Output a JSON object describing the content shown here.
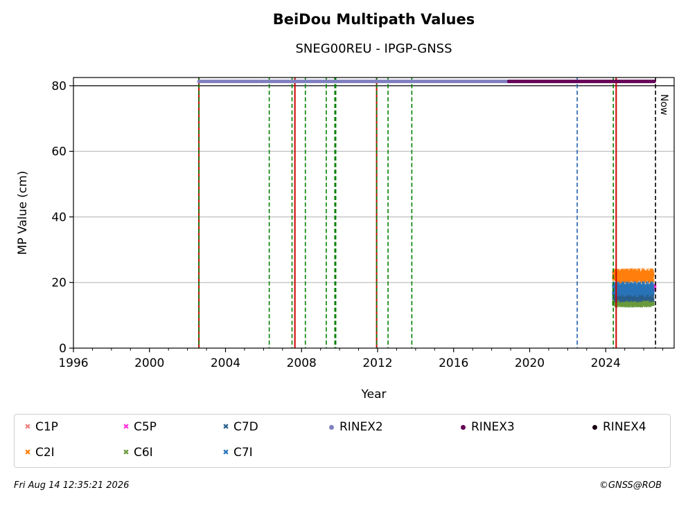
{
  "chart_data": {
    "type": "scatter",
    "title": "BeiDou Multipath Values",
    "subtitle": "SNEG00REU - IPGP-GNSS",
    "xlabel": "Year",
    "ylabel": "MP Value (cm)",
    "xlim": [
      1996,
      2027.6
    ],
    "ylim": [
      0,
      82.5
    ],
    "xticks": [
      1996,
      2000,
      2004,
      2008,
      2012,
      2016,
      2020,
      2024
    ],
    "yticks": [
      0,
      20,
      40,
      60,
      80
    ],
    "grid": "horizontal",
    "legend_position": "bottom",
    "now_label": "Now",
    "now_year": 2026.62,
    "reference_line_y": 80,
    "vertical_lines": [
      {
        "year": 2002.6,
        "color": "#cc0000",
        "style": "solid"
      },
      {
        "year": 2002.6,
        "color": "#008000",
        "style": "dashed"
      },
      {
        "year": 2006.3,
        "color": "#008000",
        "style": "dashed"
      },
      {
        "year": 2007.5,
        "color": "#008000",
        "style": "dashed"
      },
      {
        "year": 2007.65,
        "color": "#cc0000",
        "style": "solid"
      },
      {
        "year": 2008.2,
        "color": "#008000",
        "style": "dashed"
      },
      {
        "year": 2009.3,
        "color": "#008000",
        "style": "dashed"
      },
      {
        "year": 2009.75,
        "color": "#008000",
        "style": "dashed"
      },
      {
        "year": 2009.8,
        "color": "#008000",
        "style": "dashed"
      },
      {
        "year": 2011.95,
        "color": "#cc0000",
        "style": "solid"
      },
      {
        "year": 2011.95,
        "color": "#008000",
        "style": "dashed"
      },
      {
        "year": 2012.55,
        "color": "#008000",
        "style": "dashed"
      },
      {
        "year": 2013.8,
        "color": "#008000",
        "style": "dashed"
      },
      {
        "year": 2022.5,
        "color": "#1f5fa8",
        "style": "dashed"
      },
      {
        "year": 2024.4,
        "color": "#008000",
        "style": "dashed"
      },
      {
        "year": 2024.55,
        "color": "#cc0000",
        "style": "solid"
      },
      {
        "year": 2026.62,
        "color": "#000000",
        "style": "dashed"
      }
    ],
    "rinex_bars": [
      {
        "name": "RINEX2",
        "from": 2002.6,
        "to": 2005.7,
        "y": 81.3,
        "color": "#8080c0"
      },
      {
        "name": "RINEX2",
        "from": 2005.8,
        "to": 2018.9,
        "y": 81.3,
        "color": "#8080c0"
      },
      {
        "name": "RINEX3",
        "from": 2018.9,
        "to": 2026.55,
        "y": 81.3,
        "color": "#660055"
      }
    ],
    "series": [
      {
        "name": "C1P",
        "color": "#f08080",
        "marker": "x",
        "from": 2024.4,
        "to": 2024.5,
        "mean": 22.0,
        "spread": 1.0
      },
      {
        "name": "C2I",
        "color": "#ff7f0e",
        "marker": "x",
        "from": 2024.4,
        "to": 2026.5,
        "mean": 22.0,
        "spread": 1.6
      },
      {
        "name": "C5P",
        "color": "#ff33dd",
        "marker": "x",
        "from": 2026.35,
        "to": 2026.6,
        "mean": 18.5,
        "spread": 0.6
      },
      {
        "name": "C6I",
        "color": "#6b9a3e",
        "marker": "x",
        "from": 2024.4,
        "to": 2026.5,
        "mean": 13.8,
        "spread": 0.8
      },
      {
        "name": "C7D",
        "color": "#2a5e8c",
        "marker": "x",
        "from": 2024.4,
        "to": 2026.5,
        "mean": 16.0,
        "spread": 1.3
      },
      {
        "name": "C7I",
        "color": "#2a74b8",
        "marker": "x",
        "from": 2024.4,
        "to": 2026.5,
        "mean": 18.0,
        "spread": 1.6
      }
    ],
    "legend": [
      {
        "label": "C1P",
        "kind": "x",
        "color": "#f08080"
      },
      {
        "label": "C2I",
        "kind": "x",
        "color": "#ff7f0e"
      },
      {
        "label": "C5P",
        "kind": "x",
        "color": "#ff33dd"
      },
      {
        "label": "C6I",
        "kind": "x",
        "color": "#6b9a3e"
      },
      {
        "label": "C7D",
        "kind": "x",
        "color": "#2a5e8c"
      },
      {
        "label": "C7I",
        "kind": "x",
        "color": "#2a74b8"
      },
      {
        "label": "RINEX2",
        "kind": "dot",
        "color": "#8080c0"
      },
      {
        "label": "RINEX3",
        "kind": "dot",
        "color": "#660055"
      },
      {
        "label": "RINEX4",
        "kind": "dot",
        "color": "#1a0014"
      }
    ]
  },
  "footer": {
    "timestamp": "Fri Aug 14 12:35:21 2026",
    "copyright": "©GNSS@ROB"
  }
}
